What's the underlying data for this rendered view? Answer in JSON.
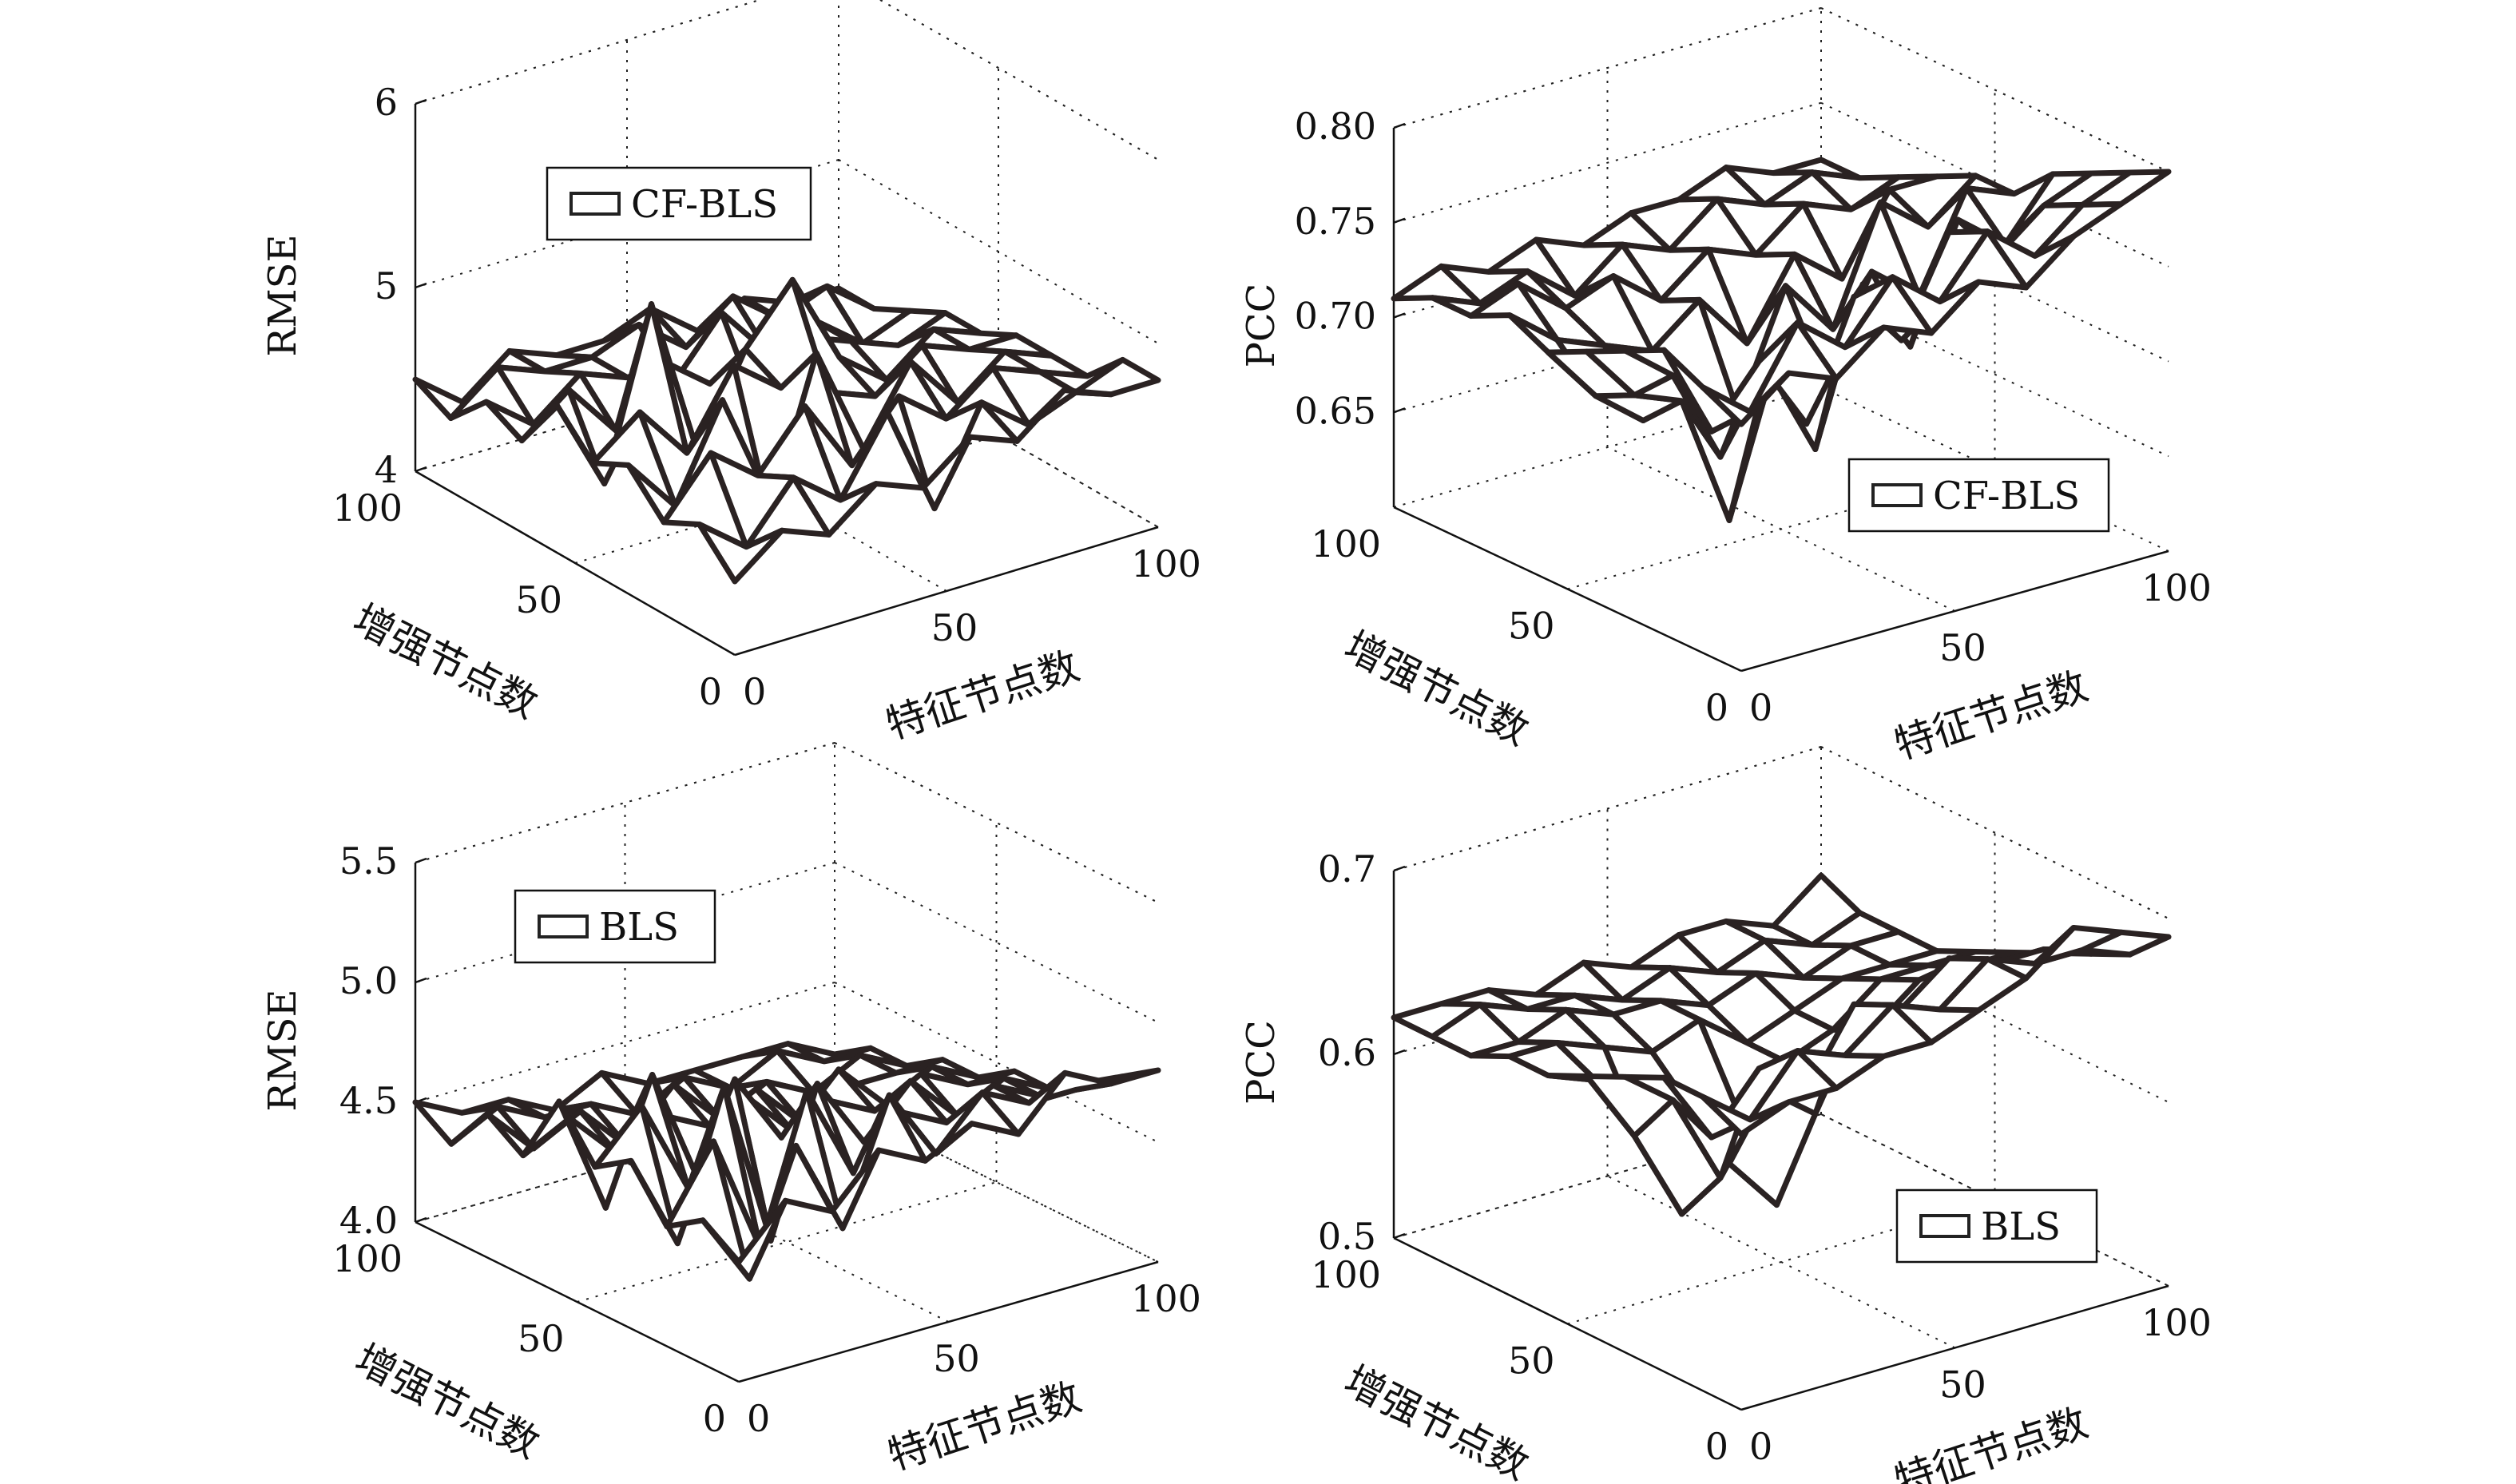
{
  "chart_data": [
    {
      "id": "cf-rmse",
      "type": "surface",
      "legend": "CF-BLS",
      "xlabel": "特征节点数",
      "ylabel": "增强节点数",
      "zlabel": "RMSE",
      "xlim": [
        0,
        100
      ],
      "ylim": [
        0,
        100
      ],
      "zlim": [
        4,
        6
      ],
      "xticks": [
        "0",
        "50",
        "100"
      ],
      "yticks": [
        "0",
        "50",
        "100"
      ],
      "zticks": [
        {
          "v": 4,
          "t": "4"
        },
        {
          "v": 5,
          "t": "5"
        },
        {
          "v": 6,
          "t": "6"
        }
      ],
      "grid": true,
      "legend_position": "upper-left",
      "z": [
        [
          4.4,
          4.6,
          4.5,
          4.7,
          4.6,
          4.8,
          4.7,
          4.9,
          4.8,
          4.8
        ],
        [
          4.6,
          4.4,
          4.7,
          4.5,
          4.9,
          4.3,
          4.8,
          4.6,
          4.7,
          4.8
        ],
        [
          4.5,
          4.8,
          4.6,
          4.9,
          4.5,
          4.8,
          4.6,
          4.8,
          4.7,
          4.6
        ],
        [
          4.7,
          4.4,
          4.9,
          4.2,
          5.0,
          4.4,
          4.8,
          4.5,
          4.7,
          4.6
        ],
        [
          4.6,
          4.8,
          4.5,
          4.9,
          4.7,
          4.6,
          4.5,
          4.7,
          4.6,
          4.6
        ],
        [
          4.8,
          4.3,
          5.2,
          4.3,
          4.8,
          5.1,
          4.6,
          4.4,
          4.6,
          4.5
        ],
        [
          4.5,
          4.7,
          4.4,
          4.7,
          4.5,
          4.3,
          4.6,
          4.5,
          4.4,
          4.5
        ],
        [
          4.6,
          4.4,
          4.6,
          4.5,
          4.4,
          4.7,
          4.4,
          4.5,
          4.3,
          4.4
        ],
        [
          4.4,
          4.6,
          4.5,
          4.5,
          4.6,
          4.4,
          4.6,
          4.4,
          4.5,
          4.3
        ],
        [
          4.5,
          4.3,
          4.5,
          4.4,
          4.4,
          4.5,
          4.3,
          4.4,
          4.3,
          4.3
        ]
      ]
    },
    {
      "id": "cf-pcc",
      "type": "surface",
      "legend": "CF-BLS",
      "xlabel": "特征节点数",
      "ylabel": "增强节点数",
      "zlabel": "PCC",
      "xlim": [
        0,
        100
      ],
      "ylim": [
        0,
        100
      ],
      "zlim": [
        0.6,
        0.8
      ],
      "xticks": [
        "0",
        "50",
        "100"
      ],
      "yticks": [
        "0",
        "50",
        "100"
      ],
      "zticks": [
        {
          "v": 0.65,
          "t": "0.65"
        },
        {
          "v": 0.7,
          "t": "0.70"
        },
        {
          "v": 0.75,
          "t": "0.75"
        },
        {
          "v": 0.8,
          "t": "0.80"
        }
      ],
      "grid": true,
      "legend_position": "lower-right",
      "z": [
        [
          0.73,
          0.75,
          0.74,
          0.76,
          0.75,
          0.77,
          0.76,
          0.78,
          0.79,
          0.8
        ],
        [
          0.74,
          0.72,
          0.76,
          0.74,
          0.77,
          0.75,
          0.78,
          0.76,
          0.78,
          0.79
        ],
        [
          0.75,
          0.7,
          0.73,
          0.69,
          0.75,
          0.72,
          0.77,
          0.75,
          0.77,
          0.78
        ],
        [
          0.74,
          0.72,
          0.67,
          0.71,
          0.66,
          0.74,
          0.7,
          0.76,
          0.74,
          0.77
        ],
        [
          0.73,
          0.7,
          0.69,
          0.62,
          0.7,
          0.68,
          0.73,
          0.71,
          0.76,
          0.75
        ],
        [
          0.72,
          0.69,
          0.67,
          0.68,
          0.66,
          0.72,
          0.69,
          0.75,
          0.73,
          0.75
        ],
        [
          0.73,
          0.71,
          0.7,
          0.69,
          0.71,
          0.68,
          0.72,
          0.7,
          0.74,
          0.74
        ],
        [
          0.72,
          0.73,
          0.71,
          0.72,
          0.7,
          0.72,
          0.71,
          0.73,
          0.72,
          0.73
        ],
        [
          0.72,
          0.71,
          0.72,
          0.7,
          0.72,
          0.71,
          0.73,
          0.72,
          0.73,
          0.72
        ],
        [
          0.71,
          0.72,
          0.71,
          0.72,
          0.71,
          0.72,
          0.72,
          0.73,
          0.72,
          0.72
        ]
      ]
    },
    {
      "id": "bls-rmse",
      "type": "surface",
      "legend": "BLS",
      "xlabel": "特征节点数",
      "ylabel": "增强节点数",
      "zlabel": "RMSE",
      "xlim": [
        0,
        100
      ],
      "ylim": [
        0,
        100
      ],
      "zlim": [
        4.0,
        5.5
      ],
      "xticks": [
        "0",
        "50",
        "100"
      ],
      "yticks": [
        "0",
        "50",
        "100"
      ],
      "zticks": [
        {
          "v": 4.0,
          "t": "4.0"
        },
        {
          "v": 4.5,
          "t": "4.5"
        },
        {
          "v": 5.0,
          "t": "5.0"
        },
        {
          "v": 5.5,
          "t": "5.5"
        }
      ],
      "grid": true,
      "legend_position": "upper-left",
      "z": [
        [
          4.5,
          4.7,
          4.6,
          4.8,
          4.7,
          4.8,
          4.7,
          4.9,
          4.8,
          4.8
        ],
        [
          4.6,
          4.3,
          4.8,
          4.4,
          4.9,
          4.6,
          4.8,
          4.7,
          4.7,
          4.7
        ],
        [
          4.5,
          4.8,
          4.3,
          4.9,
          4.5,
          4.7,
          4.6,
          4.7,
          4.6,
          4.6
        ],
        [
          4.7,
          4.3,
          4.9,
          4.2,
          4.8,
          4.5,
          4.7,
          4.5,
          4.6,
          4.5
        ],
        [
          4.6,
          4.8,
          4.4,
          4.8,
          4.5,
          4.6,
          4.5,
          4.6,
          4.5,
          4.5
        ],
        [
          4.8,
          4.3,
          4.8,
          4.3,
          4.6,
          4.4,
          4.6,
          4.4,
          4.5,
          4.4
        ],
        [
          4.5,
          4.6,
          4.4,
          4.5,
          4.4,
          4.5,
          4.3,
          4.4,
          4.4,
          4.4
        ],
        [
          4.6,
          4.4,
          4.5,
          4.3,
          4.5,
          4.3,
          4.4,
          4.3,
          4.4,
          4.3
        ],
        [
          4.4,
          4.5,
          4.4,
          4.4,
          4.3,
          4.4,
          4.3,
          4.4,
          4.3,
          4.3
        ],
        [
          4.5,
          4.4,
          4.4,
          4.3,
          4.4,
          4.3,
          4.3,
          4.3,
          4.3,
          4.2
        ]
      ]
    },
    {
      "id": "bls-pcc",
      "type": "surface",
      "legend": "BLS",
      "xlabel": "特征节点数",
      "ylabel": "增强节点数",
      "zlabel": "PCC",
      "xlim": [
        0,
        100
      ],
      "ylim": [
        0,
        100
      ],
      "zlim": [
        0.5,
        0.7
      ],
      "xticks": [
        "0",
        "50",
        "100"
      ],
      "yticks": [
        "0",
        "50",
        "100"
      ],
      "zticks": [
        {
          "v": 0.5,
          "t": "0.5"
        },
        {
          "v": 0.6,
          "t": "0.6"
        },
        {
          "v": 0.7,
          "t": "0.7"
        }
      ],
      "grid": true,
      "legend_position": "lower-right",
      "z": [
        [
          0.65,
          0.66,
          0.66,
          0.67,
          0.67,
          0.68,
          0.69,
          0.71,
          0.7,
          0.69
        ],
        [
          0.66,
          0.64,
          0.67,
          0.66,
          0.68,
          0.67,
          0.69,
          0.68,
          0.68,
          0.67
        ],
        [
          0.66,
          0.62,
          0.65,
          0.63,
          0.67,
          0.66,
          0.68,
          0.67,
          0.67,
          0.66
        ],
        [
          0.65,
          0.63,
          0.58,
          0.62,
          0.6,
          0.65,
          0.64,
          0.66,
          0.65,
          0.65
        ],
        [
          0.64,
          0.6,
          0.55,
          0.57,
          0.54,
          0.6,
          0.62,
          0.64,
          0.64,
          0.64
        ],
        [
          0.63,
          0.62,
          0.58,
          0.59,
          0.58,
          0.6,
          0.61,
          0.63,
          0.63,
          0.63
        ],
        [
          0.63,
          0.63,
          0.62,
          0.61,
          0.62,
          0.6,
          0.61,
          0.62,
          0.62,
          0.62
        ],
        [
          0.62,
          0.62,
          0.63,
          0.62,
          0.62,
          0.61,
          0.62,
          0.61,
          0.62,
          0.62
        ],
        [
          0.62,
          0.63,
          0.62,
          0.62,
          0.61,
          0.62,
          0.61,
          0.62,
          0.61,
          0.62
        ],
        [
          0.62,
          0.62,
          0.62,
          0.61,
          0.62,
          0.61,
          0.62,
          0.62,
          0.61,
          0.63
        ]
      ]
    }
  ]
}
